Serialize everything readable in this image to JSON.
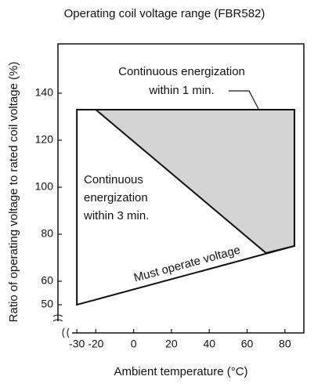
{
  "chart_data": {
    "type": "region",
    "title": "Operating coil voltage range (FBR582)",
    "xlabel": "Ambient temperature (°C)",
    "ylabel": "Ratio of operating voltage to rated coil voltage (%)",
    "xlim": [
      -40,
      90
    ],
    "ylim": [
      38,
      161
    ],
    "xticks": [
      -30,
      -20,
      0,
      20,
      40,
      60,
      80
    ],
    "yticks": [
      50,
      60,
      80,
      100,
      120,
      140
    ],
    "regions": [
      {
        "name": [
          "Continuous",
          "energization",
          "within 3 min."
        ],
        "color": "#ffffff",
        "x": [
          -30,
          85,
          85,
          -30
        ],
        "y": [
          133,
          133,
          75,
          50
        ]
      },
      {
        "name": [
          "Continuous energization",
          "within 1 min."
        ],
        "color": "#d4d4d4",
        "x": [
          -20,
          85,
          85,
          70
        ],
        "y": [
          133,
          133,
          75,
          72
        ]
      }
    ],
    "annotation": "Must operate voltage"
  }
}
